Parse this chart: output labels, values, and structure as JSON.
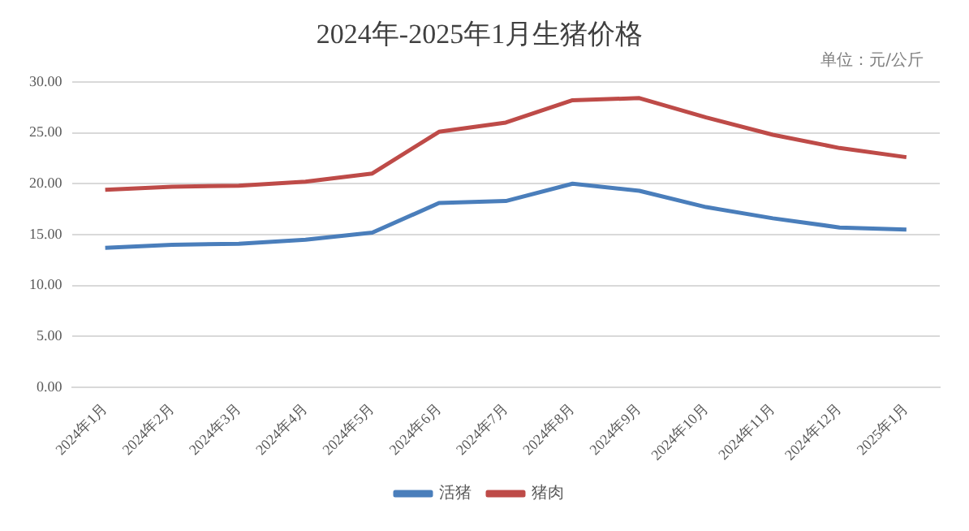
{
  "chart_data": {
    "type": "line",
    "title": "2024年-2025年1月生猪价格",
    "annotations": [
      "单位：元/公斤"
    ],
    "categories": [
      "2024年1月",
      "2024年2月",
      "2024年3月",
      "2024年4月",
      "2024年5月",
      "2024年6月",
      "2024年7月",
      "2024年8月",
      "2024年9月",
      "2024年10月",
      "2024年11月",
      "2024年12月",
      "2025年1月"
    ],
    "series": [
      {
        "name": "活猪",
        "color": "#4a7ebb",
        "values": [
          13.7,
          14.0,
          14.1,
          14.5,
          15.2,
          18.1,
          18.3,
          20.0,
          19.3,
          17.7,
          16.6,
          15.7,
          15.5
        ]
      },
      {
        "name": "猪肉",
        "color": "#be4b48",
        "values": [
          19.4,
          19.7,
          19.8,
          20.2,
          21.0,
          25.1,
          26.0,
          28.2,
          28.4,
          26.5,
          24.8,
          23.5,
          22.6
        ]
      }
    ],
    "ylim": [
      0,
      30
    ],
    "yticks": [
      {
        "value": 0,
        "label": "0.00"
      },
      {
        "value": 5,
        "label": "5.00"
      },
      {
        "value": 10,
        "label": "10.00"
      },
      {
        "value": 15,
        "label": "15.00"
      },
      {
        "value": 20,
        "label": "20.00"
      },
      {
        "value": 25,
        "label": "25.00"
      },
      {
        "value": 30,
        "label": "30.00"
      }
    ],
    "grid": "y",
    "legend": "bottom",
    "marker": "none",
    "line_style": "solid"
  }
}
